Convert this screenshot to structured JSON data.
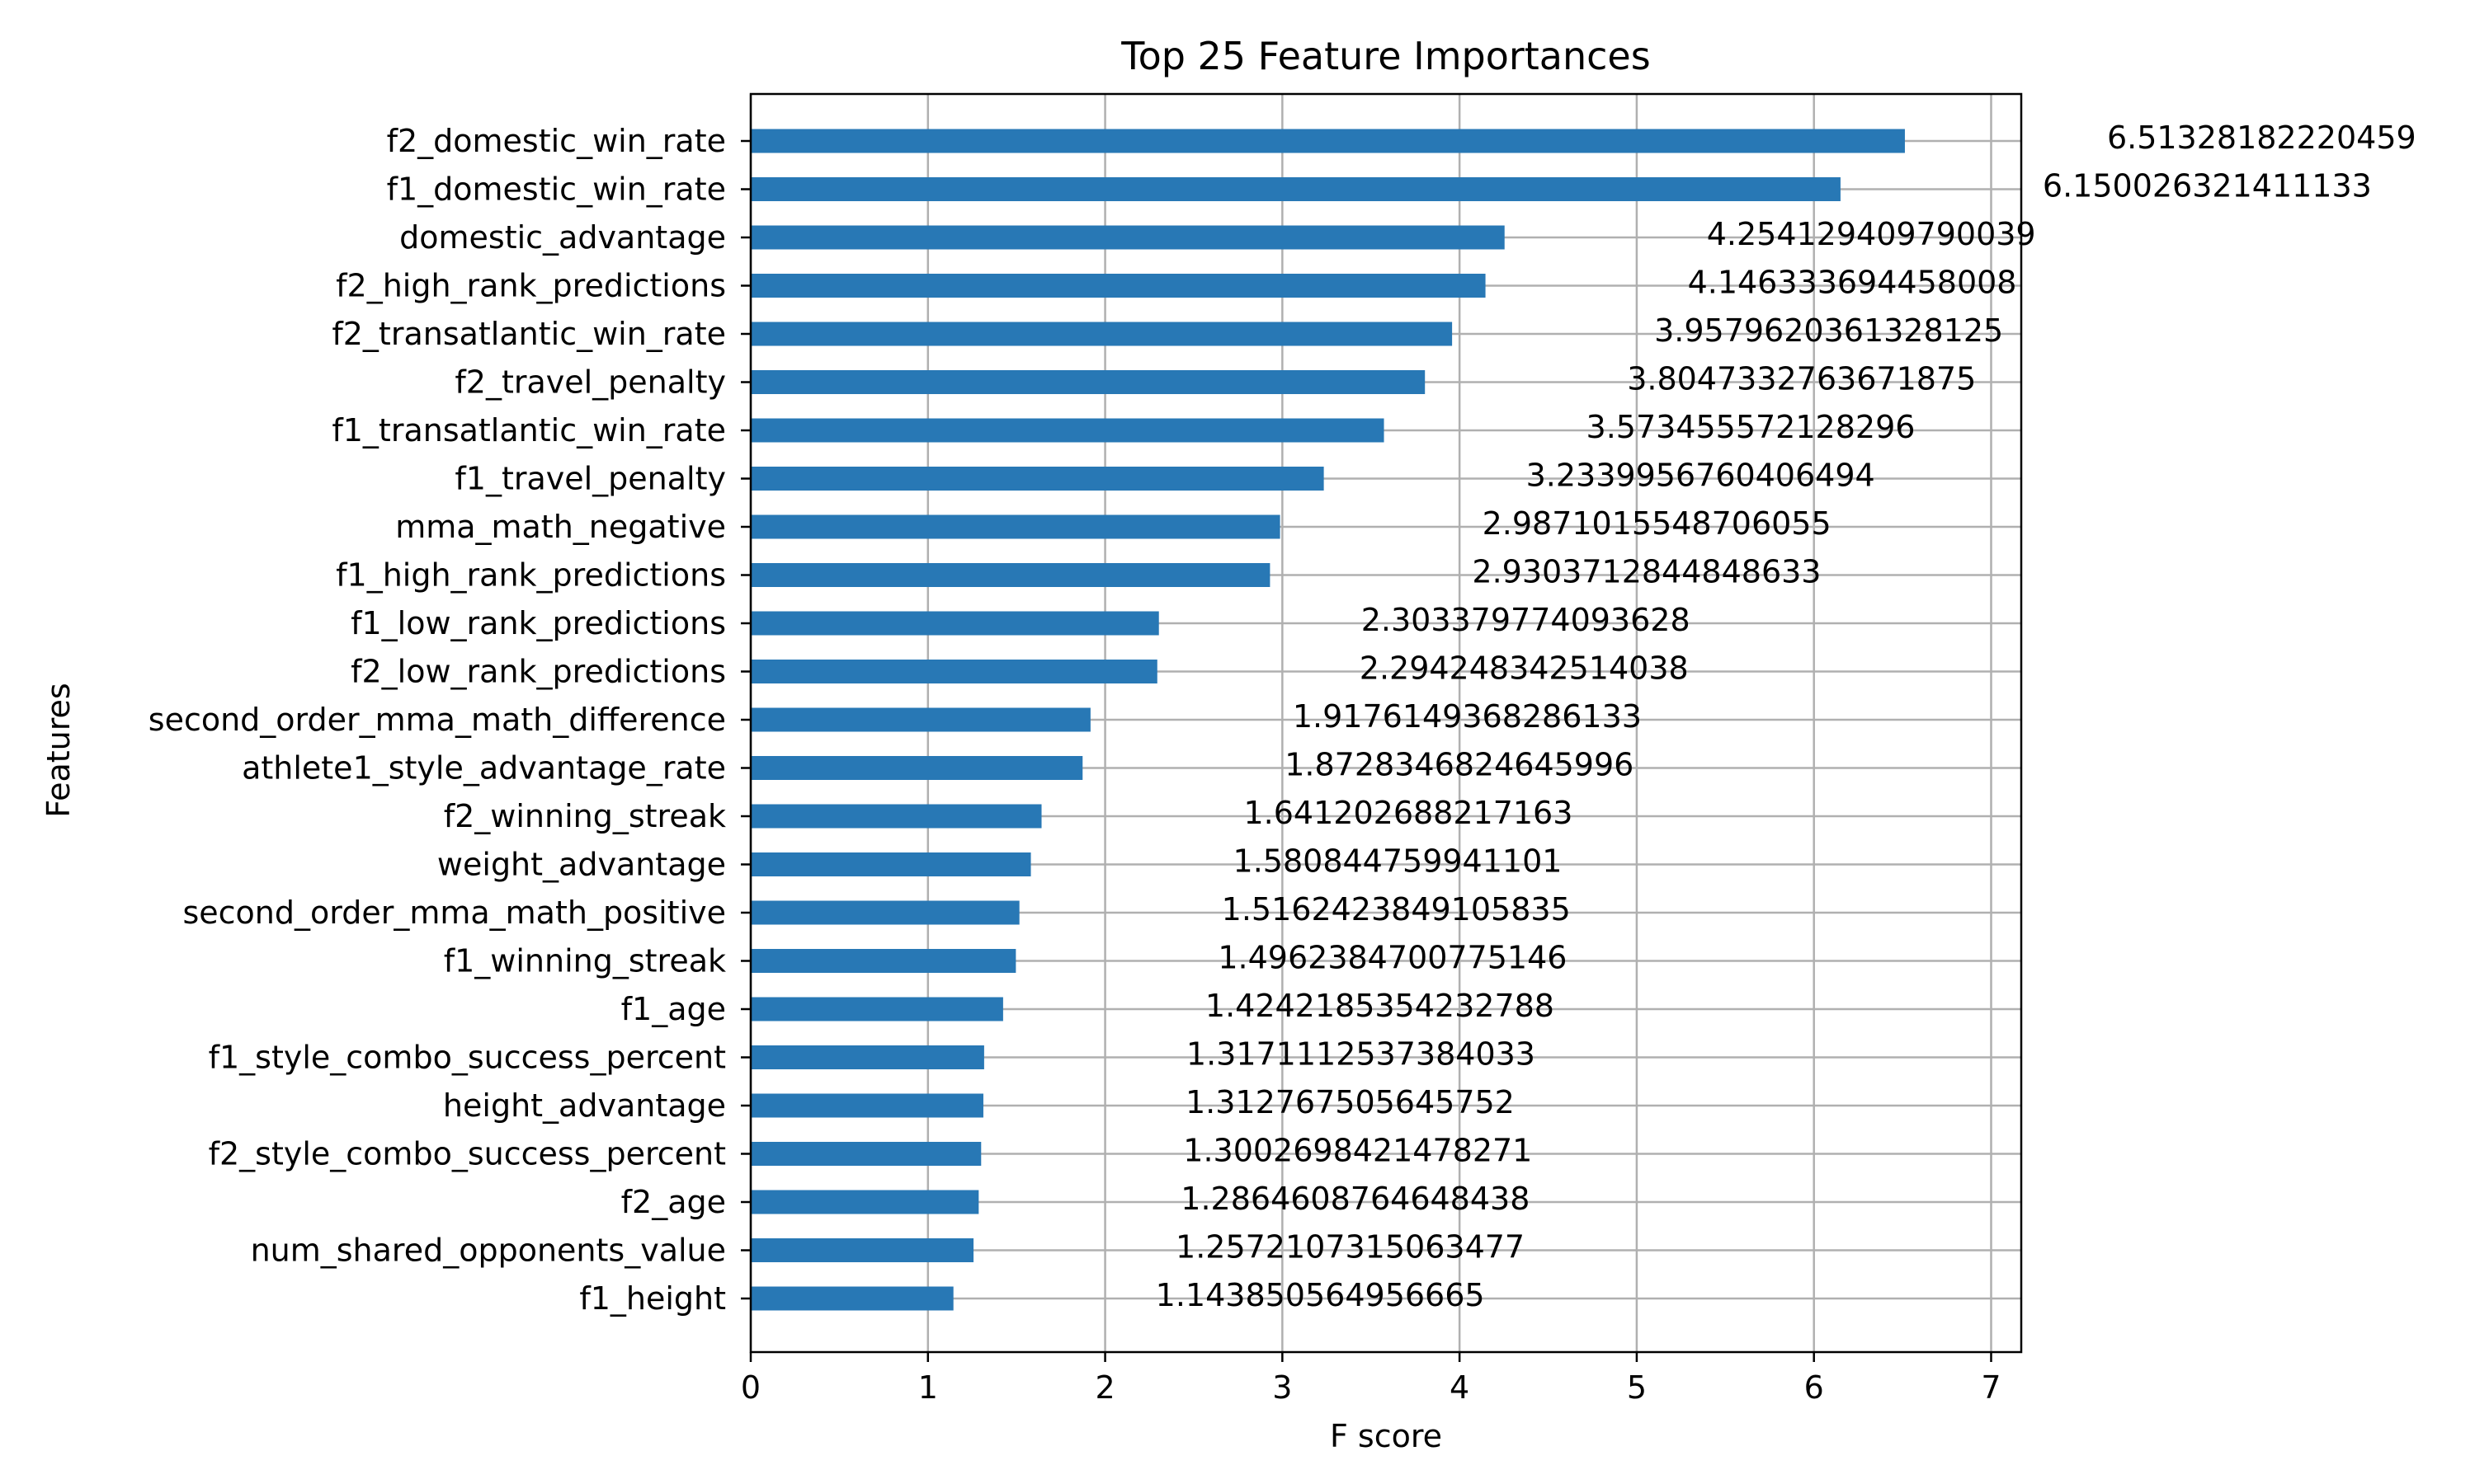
{
  "chart_data": {
    "type": "bar",
    "orientation": "horizontal",
    "title": "Top 25 Feature Importances",
    "xlabel": "F score",
    "ylabel": "Features",
    "xlim": [
      0,
      7.17
    ],
    "xticks": [
      0,
      1,
      2,
      3,
      4,
      5,
      6,
      7
    ],
    "grid": true,
    "bar_color": "#2878b5",
    "categories": [
      "f2_domestic_win_rate",
      "f1_domestic_win_rate",
      "domestic_advantage",
      "f2_high_rank_predictions",
      "f2_transatlantic_win_rate",
      "f2_travel_penalty",
      "f1_transatlantic_win_rate",
      "f1_travel_penalty",
      "mma_math_negative",
      "f1_high_rank_predictions",
      "f1_low_rank_predictions",
      "f2_low_rank_predictions",
      "second_order_mma_math_difference",
      "athlete1_style_advantage_rate",
      "f2_winning_streak",
      "weight_advantage",
      "second_order_mma_math_positive",
      "f1_winning_streak",
      "f1_age",
      "f1_style_combo_success_percent",
      "height_advantage",
      "f2_style_combo_success_percent",
      "f2_age",
      "num_shared_opponents_value",
      "f1_height"
    ],
    "values": [
      6.51328182220459,
      6.150026321411133,
      4.254129409790039,
      4.146333694458008,
      3.9579620361328125,
      3.8047332763671875,
      3.573455572128296,
      3.2339956760406494,
      2.9871015548706055,
      2.9303712844848633,
      2.303379774093628,
      2.294248342514038,
      1.9176149368286133,
      1.8728346824645996,
      1.641202688217163,
      1.580844759941101,
      1.5162423849105835,
      1.4962384700775146,
      1.4242185354232788,
      1.3171112537384033,
      1.312767505645752,
      1.3002698421478271,
      1.2864608764648438,
      1.2572107315063477,
      1.143850564956665
    ],
    "value_labels": [
      "6.51328182220459",
      "6.150026321411133",
      "4.254129409790039",
      "4.146333694458008",
      "3.9579620361328125",
      "3.8047332763671875",
      "3.573455572128296",
      "3.2339956760406494",
      "2.9871015548706055",
      "2.9303712844848633",
      "2.303379774093628",
      "2.294248342514038",
      "1.9176149368286133",
      "1.8728346824645996",
      "1.641202688217163",
      "1.580844759941101",
      "1.5162423849105835",
      "1.4962384700775146",
      "1.4242185354232788",
      "1.3171112537384033",
      "1.312767505645752",
      "1.3002698421478271",
      "1.2864608764648438",
      "1.2572107315063477",
      "1.143850564956665"
    ]
  }
}
